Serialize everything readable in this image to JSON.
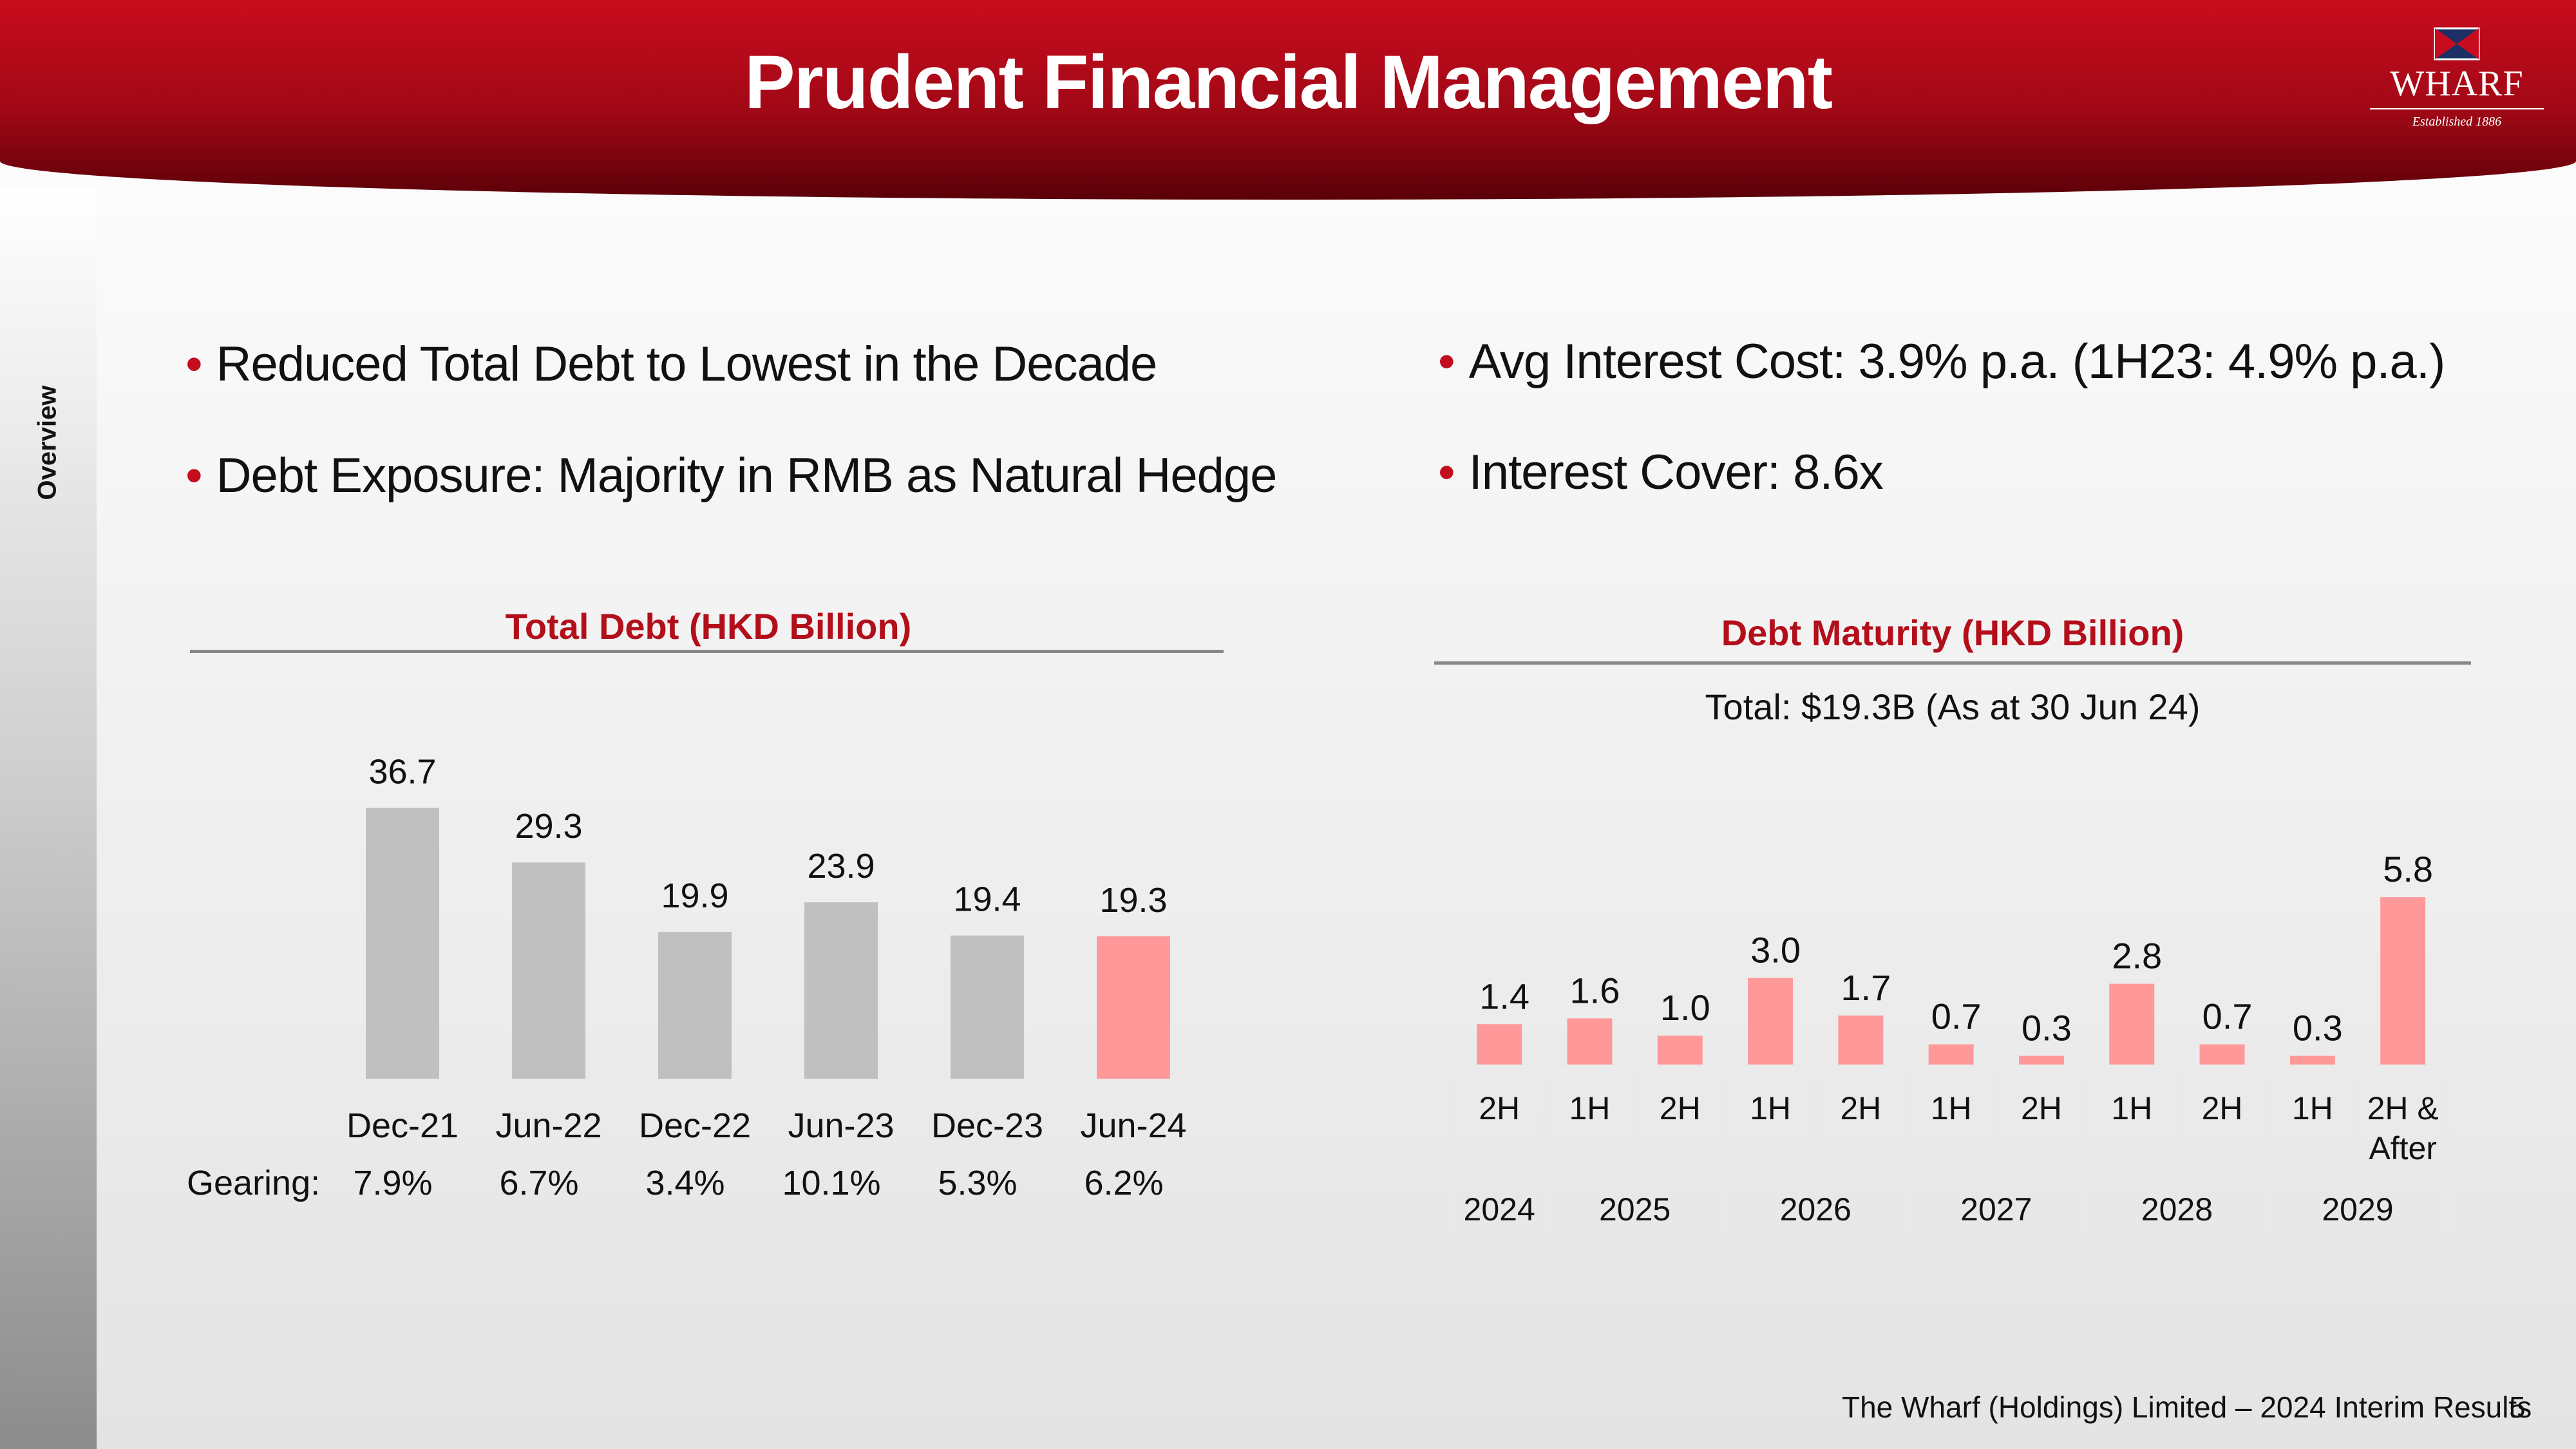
{
  "header": {
    "title": "Prudent Financial Management"
  },
  "logo": {
    "name": "WHARF",
    "established": "Established 1886"
  },
  "sidebar": {
    "label": "Overview"
  },
  "bullets": {
    "left": [
      "Reduced Total Debt to Lowest in the Decade",
      "Debt Exposure: Majority in RMB as Natural Hedge"
    ],
    "right": [
      "Avg Interest Cost: 3.9% p.a. (1H23: 4.9% p.a.)",
      "Interest Cover: 8.6x"
    ]
  },
  "colors": {
    "brand_red": "#c20e1e",
    "bar_grey": "#c0c0c0",
    "bar_highlight": "#ff9999",
    "title_red": "#b20f1b"
  },
  "chart_data": [
    {
      "type": "bar",
      "title": "Total Debt (HKD Billion)",
      "categories": [
        "Dec-21",
        "Jun-22",
        "Dec-22",
        "Jun-23",
        "Dec-23",
        "Jun-24"
      ],
      "values": [
        36.7,
        29.3,
        19.9,
        23.9,
        19.4,
        19.3
      ],
      "labels": [
        "36.7",
        "29.3",
        "19.9",
        "23.9",
        "19.4",
        "19.3"
      ],
      "highlight_index": 5,
      "gearing_label": "Gearing:",
      "gearing": [
        "7.9%",
        "6.7%",
        "3.4%",
        "10.1%",
        "5.3%",
        "6.2%"
      ]
    },
    {
      "type": "bar",
      "title": "Debt Maturity (HKD Billion)",
      "subtitle": "Total: $19.3B (As at 30 Jun 24)",
      "categories": [
        "2H",
        "1H",
        "2H",
        "1H",
        "2H",
        "1H",
        "2H",
        "1H",
        "2H",
        "1H",
        "2H & After"
      ],
      "values": [
        1.4,
        1.6,
        1.0,
        3.0,
        1.7,
        0.7,
        0.3,
        2.8,
        0.7,
        0.3,
        5.8
      ],
      "labels": [
        "1.4",
        "1.6",
        "1.0",
        "3.0",
        "1.7",
        "0.7",
        "0.3",
        "2.8",
        "0.7",
        "0.3",
        "5.8"
      ],
      "years": [
        {
          "label": "2024",
          "count": 1
        },
        {
          "label": "2025",
          "count": 2
        },
        {
          "label": "2026",
          "count": 2
        },
        {
          "label": "2027",
          "count": 2
        },
        {
          "label": "2028",
          "count": 2
        },
        {
          "label": "2029",
          "count": 2
        }
      ]
    }
  ],
  "footer": {
    "text": "The Wharf (Holdings) Limited – 2024 Interim Results",
    "page": "5"
  }
}
